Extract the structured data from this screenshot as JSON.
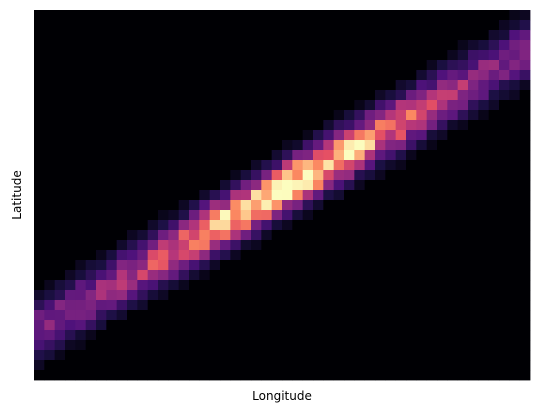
{
  "chart_data": {
    "type": "heatmap",
    "title": "",
    "xlabel": "Longitude",
    "ylabel": "Latitude",
    "x_ticks_shown": false,
    "y_ticks_shown": false,
    "grid": false,
    "colormap": "magma",
    "colormap_stops": [
      "#000004",
      "#1c1044",
      "#4f127b",
      "#812581",
      "#b5367a",
      "#e55064",
      "#fb8761",
      "#fec287",
      "#fcfdbf"
    ],
    "bins": [
      48,
      37
    ],
    "density_band": {
      "description_free": true,
      "center_start": [
        0.0,
        0.13
      ],
      "center_end": [
        1.0,
        0.9
      ],
      "peak_at": [
        0.51,
        0.53
      ]
    }
  }
}
